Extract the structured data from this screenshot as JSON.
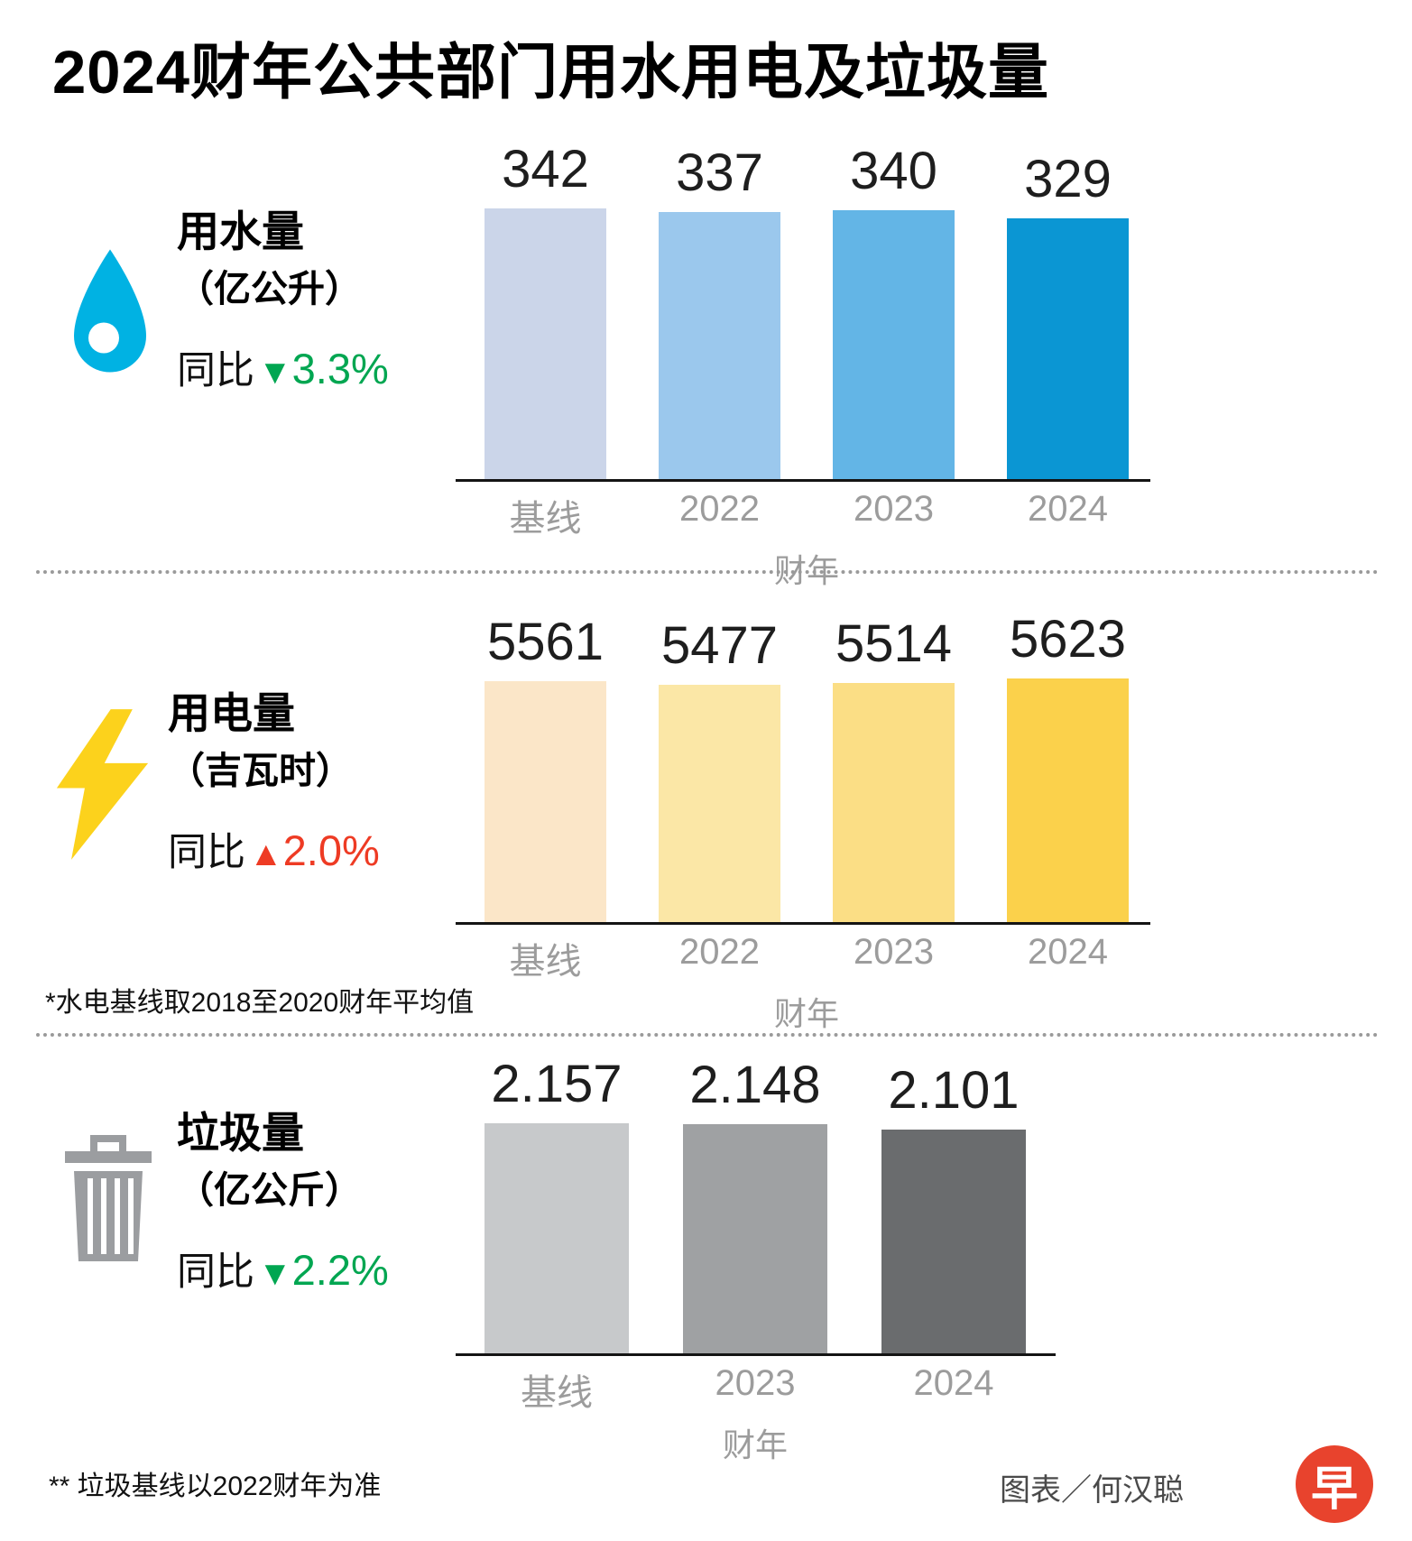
{
  "title": "2024财年公共部门用水用电及垃圾量",
  "chart_data": [
    {
      "type": "bar",
      "metric": "用水量",
      "unit": "（亿公升）",
      "yoy": {
        "prefix": "同比",
        "arrow": "▼",
        "value": "3.3%",
        "direction": "down",
        "color": "#00a651"
      },
      "categories": [
        "基线",
        "2022",
        "2023",
        "2024"
      ],
      "values": [
        342,
        337,
        340,
        329
      ],
      "value_labels": [
        "342",
        "337",
        "340",
        "329"
      ],
      "bar_colors": [
        "#cbd5e9",
        "#9bc8ed",
        "#63b5e6",
        "#0b96d3"
      ],
      "xlabel": "财年",
      "ylim": [
        0,
        342
      ],
      "icon": "water-drop-icon",
      "icon_color": "#00b2e3"
    },
    {
      "type": "bar",
      "metric": "用电量",
      "unit": "（吉瓦时）",
      "yoy": {
        "prefix": "同比",
        "arrow": "▲",
        "value": "2.0%",
        "direction": "up",
        "color": "#ee3b24"
      },
      "categories": [
        "基线",
        "2022",
        "2023",
        "2024"
      ],
      "values": [
        5561,
        5477,
        5514,
        5623
      ],
      "value_labels": [
        "5561",
        "5477",
        "5514",
        "5623"
      ],
      "bar_colors": [
        "#fbe6c8",
        "#fbe7a6",
        "#fbde85",
        "#fbd14b"
      ],
      "xlabel": "财年",
      "ylim": [
        0,
        5623
      ],
      "footnote": "*水电基线取2018至2020财年平均值",
      "icon": "lightning-icon",
      "icon_color": "#fcd21c"
    },
    {
      "type": "bar",
      "metric": "垃圾量",
      "unit": "（亿公斤）",
      "yoy": {
        "prefix": "同比",
        "arrow": "▼",
        "value": "2.2%",
        "direction": "down",
        "color": "#00a651"
      },
      "categories": [
        "基线",
        "2023",
        "2024"
      ],
      "values": [
        2.157,
        2.148,
        2.101
      ],
      "value_labels": [
        "2.157",
        "2.148",
        "2.101"
      ],
      "bar_colors": [
        "#c7c9cb",
        "#9fa1a3",
        "#6a6c6e"
      ],
      "xlabel": "财年",
      "ylim": [
        0,
        2.157
      ],
      "footnote": "** 垃圾基线以2022财年为准",
      "icon": "trash-icon",
      "icon_color": "#9b9da0"
    }
  ],
  "footer": {
    "credit": "图表／何汉聪",
    "logo": {
      "char": "早",
      "color": "#e8432d"
    }
  }
}
